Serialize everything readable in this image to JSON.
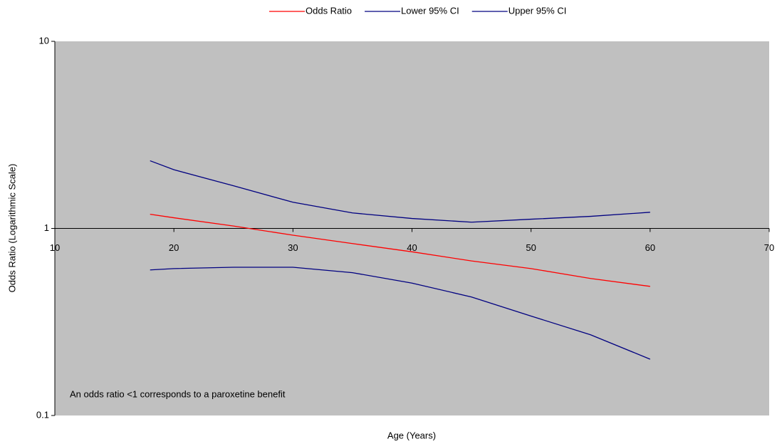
{
  "chart_data": {
    "type": "line",
    "x_label": "Age (Years)",
    "y_label": "Odds Ratio (Logarithmic Scale)",
    "annotation": "An odds ratio <1 corresponds to a paroxetine benefit",
    "x": [
      18,
      20,
      25,
      30,
      35,
      40,
      45,
      50,
      55,
      60
    ],
    "series": [
      {
        "name": "Odds Ratio",
        "color": "#ff0000",
        "values": [
          1.19,
          1.14,
          1.03,
          0.92,
          0.83,
          0.75,
          0.67,
          0.61,
          0.54,
          0.49
        ]
      },
      {
        "name": "Lower 95% CI",
        "color": "#000080",
        "values": [
          0.6,
          0.61,
          0.62,
          0.62,
          0.58,
          0.51,
          0.43,
          0.34,
          0.27,
          0.2
        ]
      },
      {
        "name": "Upper 95% CI",
        "color": "#000080",
        "values": [
          2.3,
          2.06,
          1.69,
          1.38,
          1.21,
          1.13,
          1.08,
          1.12,
          1.16,
          1.22
        ]
      }
    ],
    "xlim": [
      10,
      70
    ],
    "xticks": [
      10,
      20,
      30,
      40,
      50,
      60,
      70
    ],
    "ylim": [
      0.1,
      10
    ],
    "yticks": [
      0.1,
      1,
      10
    ],
    "log_y": true,
    "x_axis_crosses_at": 1,
    "legend": "top",
    "plot_background": "#c0c0c0"
  }
}
